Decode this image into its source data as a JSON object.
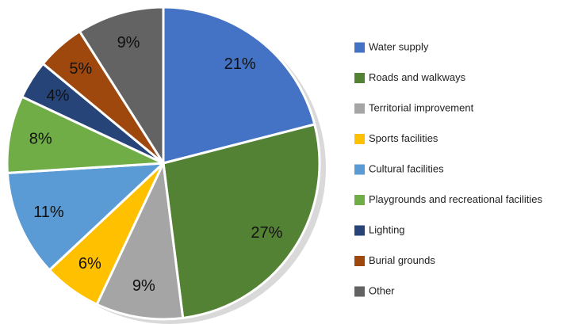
{
  "chart_data": {
    "type": "pie",
    "categories": [
      "Water supply",
      "Roads and walkways",
      "Territorial improvement",
      "Sports facilities",
      "Cultural facilities",
      "Playgrounds and recreational facilities",
      "Lighting",
      "Burial grounds",
      "Other"
    ],
    "values": [
      21,
      27,
      9,
      6,
      11,
      8,
      4,
      5,
      9
    ],
    "value_labels": [
      "21%",
      "27%",
      "9%",
      "6%",
      "11%",
      "8%",
      "4%",
      "5%",
      "9%"
    ],
    "colors": [
      "#4472c4",
      "#548235",
      "#a5a5a5",
      "#ffc000",
      "#5b9bd5",
      "#70ad47",
      "#264478",
      "#9e480e",
      "#636363"
    ],
    "legend": "right"
  }
}
